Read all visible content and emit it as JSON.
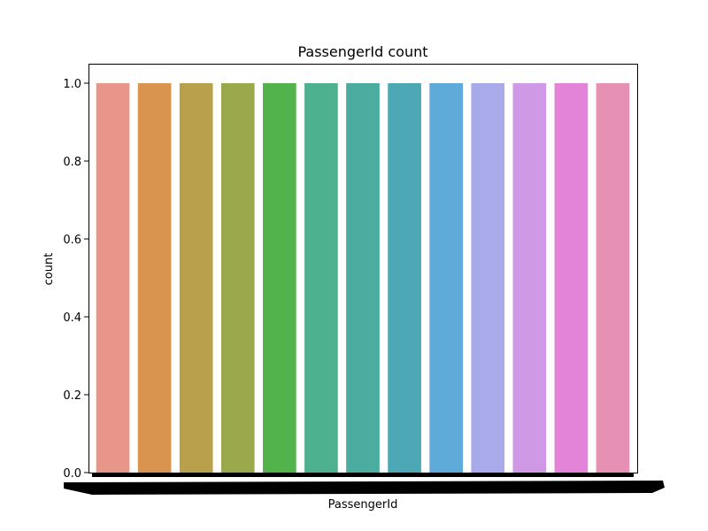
{
  "chart_data": {
    "type": "bar",
    "title": "PassengerId count",
    "xlabel": "PassengerId",
    "ylabel": "count",
    "ylim": [
      0,
      1.05
    ],
    "yticks": [
      0.0,
      0.2,
      0.4,
      0.6,
      0.8,
      1.0
    ],
    "ytick_labels": [
      "0.0",
      "0.2",
      "0.4",
      "0.6",
      "0.8",
      "1.0"
    ],
    "grid": false,
    "legend": "none",
    "x_tick_labels_legible": false,
    "value_per_bar": 1.0,
    "visible_bar_count": 13,
    "bar_colors": [
      "#e8968a",
      "#d9954f",
      "#b9a04c",
      "#9ba84b",
      "#52b24c",
      "#4db08e",
      "#4aada0",
      "#4ba8b4",
      "#5eaad8",
      "#a9aae9",
      "#cf99e5",
      "#e384d8",
      "#e690b4"
    ]
  }
}
